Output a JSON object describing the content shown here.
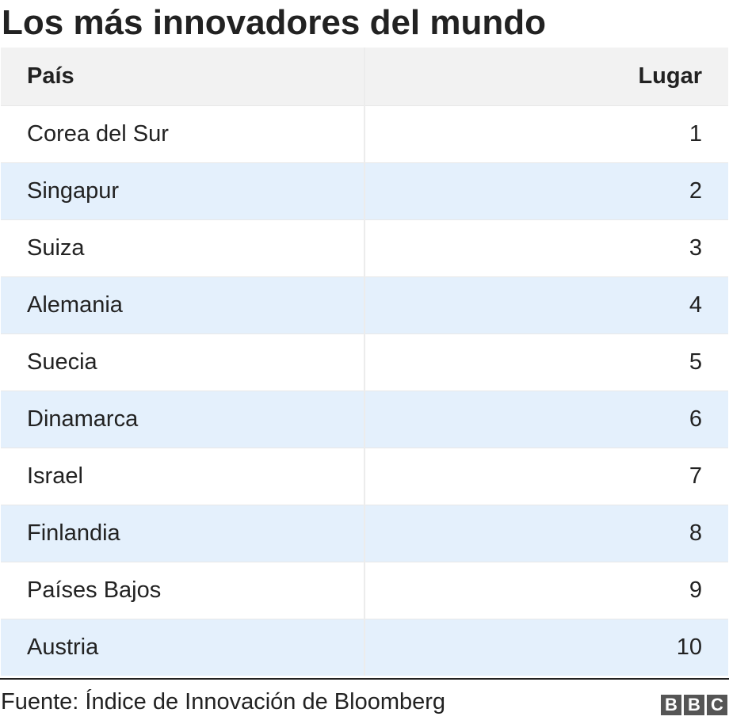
{
  "title": "Los más innovadores del mundo",
  "table": {
    "headers": [
      "País",
      "Lugar"
    ],
    "rows": [
      [
        "Corea del Sur",
        "1"
      ],
      [
        "Singapur",
        "2"
      ],
      [
        "Suiza",
        "3"
      ],
      [
        "Alemania",
        "4"
      ],
      [
        "Suecia",
        "5"
      ],
      [
        "Dinamarca",
        "6"
      ],
      [
        "Israel",
        "7"
      ],
      [
        "Finlandia",
        "8"
      ],
      [
        "Países Bajos",
        "9"
      ],
      [
        "Austria",
        "10"
      ]
    ]
  },
  "source": "Fuente: Índice de Innovación de Bloomberg",
  "logo": [
    "B",
    "B",
    "C"
  ],
  "colors": {
    "header_bg": "#f2f2f2",
    "stripe_bg": "#e4f0fc",
    "text": "#222222",
    "logo": "#555555"
  },
  "chart_data": {
    "type": "table",
    "title": "Los más innovadores del mundo",
    "columns": [
      "País",
      "Lugar"
    ],
    "rows": [
      {
        "País": "Corea del Sur",
        "Lugar": 1
      },
      {
        "País": "Singapur",
        "Lugar": 2
      },
      {
        "País": "Suiza",
        "Lugar": 3
      },
      {
        "País": "Alemania",
        "Lugar": 4
      },
      {
        "País": "Suecia",
        "Lugar": 5
      },
      {
        "País": "Dinamarca",
        "Lugar": 6
      },
      {
        "País": "Israel",
        "Lugar": 7
      },
      {
        "País": "Finlandia",
        "Lugar": 8
      },
      {
        "País": "Países Bajos",
        "Lugar": 9
      },
      {
        "País": "Austria",
        "Lugar": 10
      }
    ],
    "source": "Fuente: Índice de Innovación de Bloomberg"
  }
}
